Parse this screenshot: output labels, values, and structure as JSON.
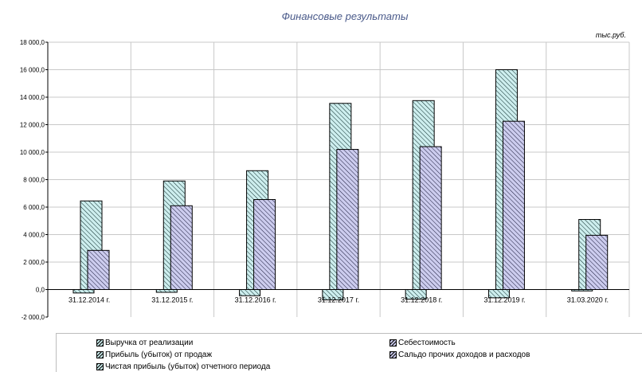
{
  "chart_data": {
    "type": "bar",
    "title": "Финансовые результаты",
    "unit_label": "тыс.руб.",
    "categories": [
      "31.12.2014 г.",
      "31.12.2015 г.",
      "31.12.2016 г.",
      "31.12.2017 г.",
      "31.12.2018 г.",
      "31.12.2019 г.",
      "31.03.2020 г."
    ],
    "ylim": [
      -2000,
      18000
    ],
    "yticks": [
      -2000,
      0,
      2000,
      4000,
      6000,
      8000,
      10000,
      12000,
      14000,
      16000,
      18000
    ],
    "ytick_labels": [
      "-2 000,0",
      "0,0",
      "2 000,0",
      "4 000,0",
      "6 000,0",
      "8 000,0",
      "10 000,0",
      "12 000,0",
      "14 000,0",
      "16 000,0",
      "18 000,0"
    ],
    "grid": true,
    "legend_position": "bottom",
    "series": [
      {
        "name": "Выручка от реализации",
        "values": [
          6450,
          7900,
          8650,
          13550,
          13750,
          16000,
          5100
        ],
        "color": "#cdeeee"
      },
      {
        "name": "Себестоимость",
        "values": [
          2850,
          6100,
          6550,
          10200,
          10400,
          12250,
          3950
        ],
        "color": "#ccccee"
      },
      {
        "name": "Прибыль (убыток) от продаж",
        "values": [
          -250,
          -200,
          -450,
          -750,
          -700,
          -600,
          -100
        ],
        "color": "#cdeeee"
      },
      {
        "name": "Сальдо прочих доходов и расходов",
        "values": [
          0,
          0,
          0,
          0,
          0,
          0,
          0
        ],
        "color": "#ccccee"
      },
      {
        "name": "Чистая прибыль (убыток) отчетного периода",
        "values": [
          0,
          0,
          0,
          0,
          0,
          0,
          0
        ],
        "color": "#cdeeee"
      }
    ]
  }
}
